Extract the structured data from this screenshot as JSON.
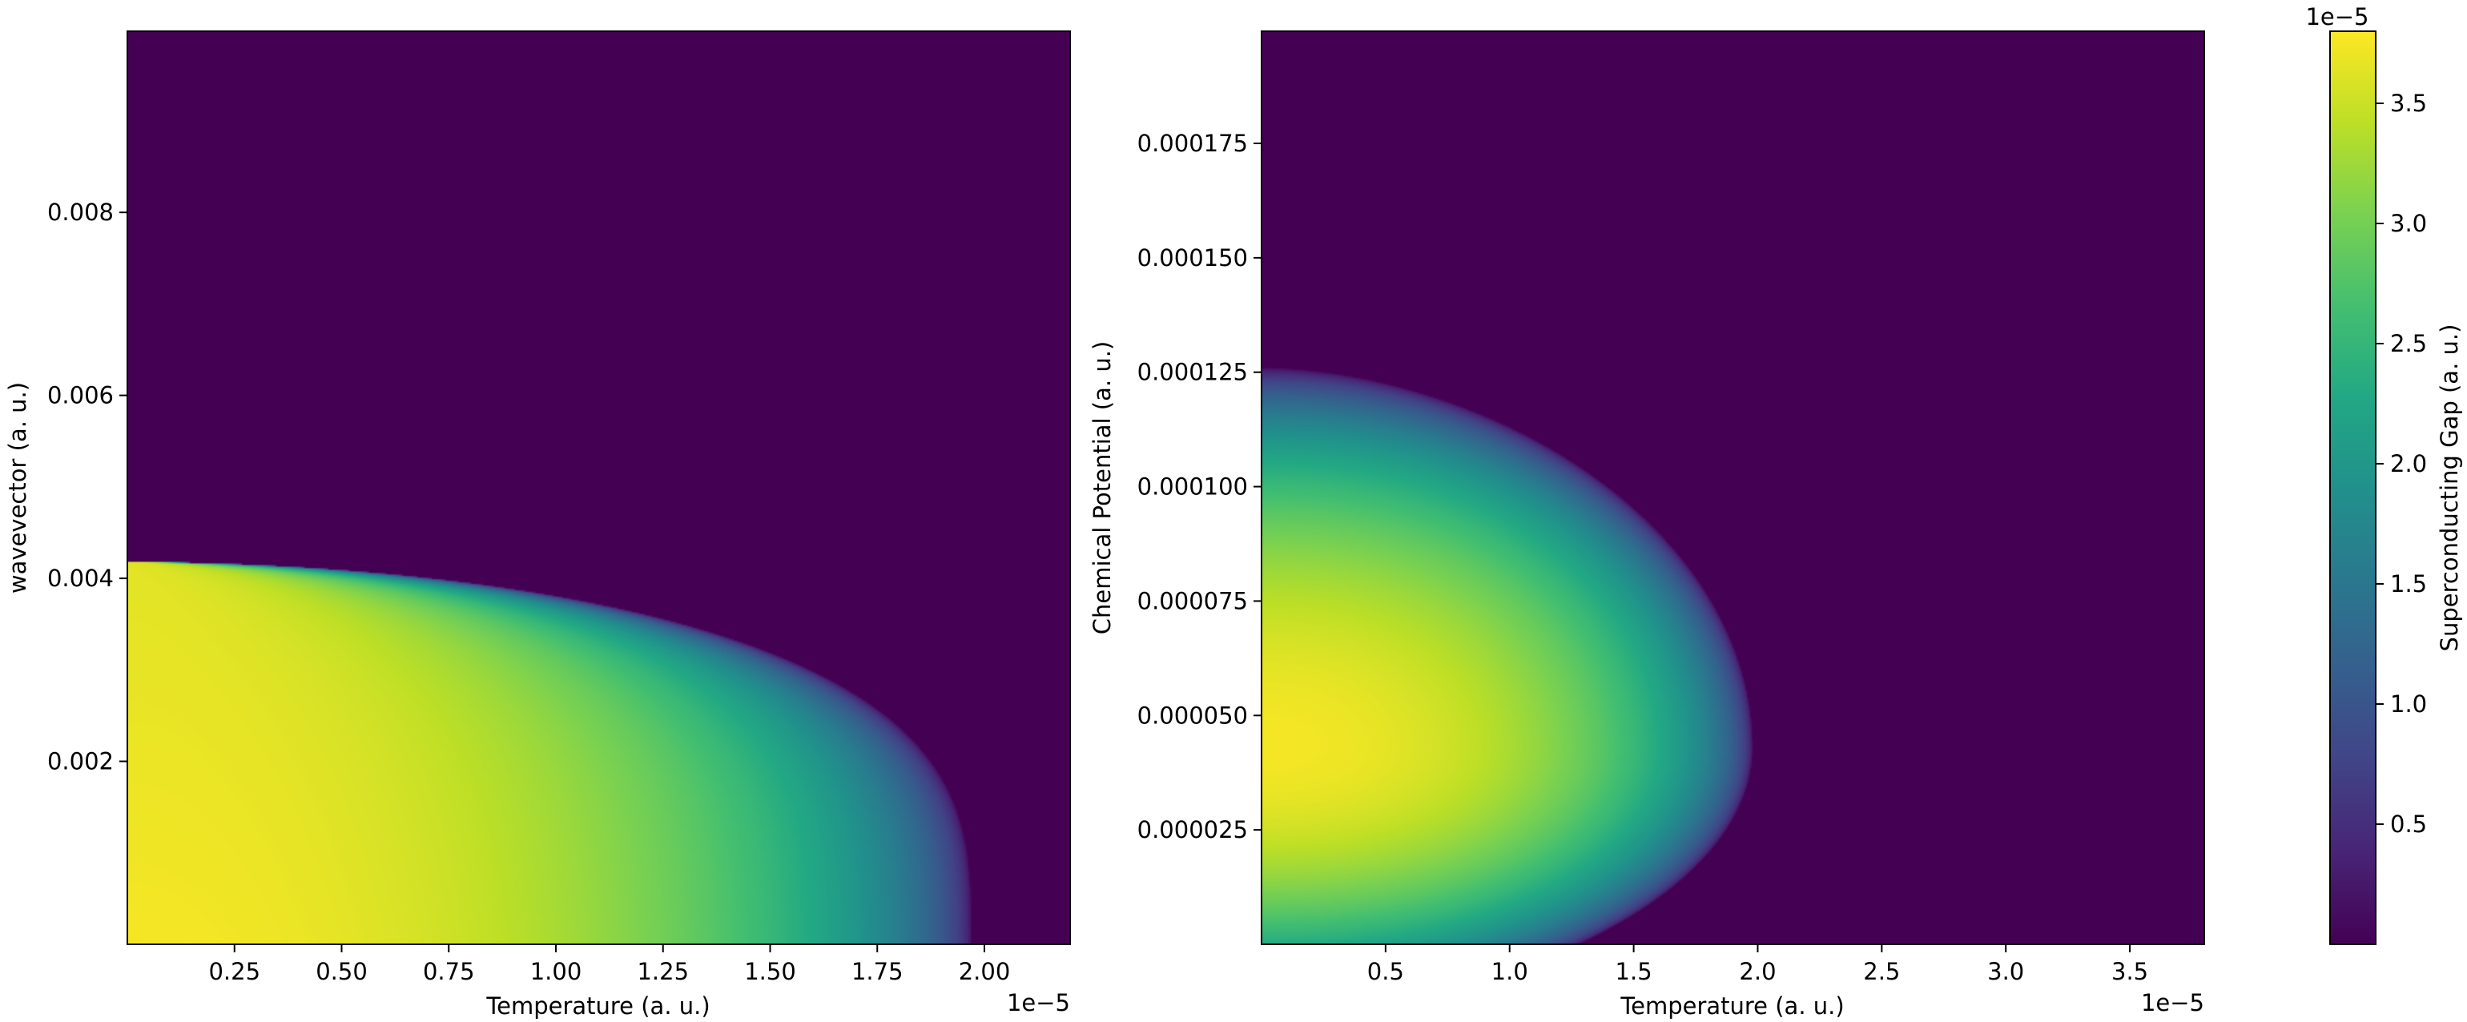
{
  "chart_data": [
    {
      "type": "heatmap",
      "xlabel": "Temperature (a. u.)",
      "ylabel": "wavevector (a. u.)",
      "x_offset_label": "1e−5",
      "xlim": [
        0.0,
        2.2e-05
      ],
      "ylim": [
        0.0,
        0.00998
      ],
      "xticks": [
        2.5e-06,
        5e-06,
        7.5e-06,
        1e-05,
        1.25e-05,
        1.5e-05,
        1.75e-05,
        2e-05
      ],
      "xtick_labels": [
        "0.25",
        "0.50",
        "0.75",
        "1.00",
        "1.25",
        "1.50",
        "1.75",
        "2.00"
      ],
      "yticks": [
        0.002,
        0.004,
        0.006,
        0.008
      ],
      "ytick_labels": [
        "0.002",
        "0.004",
        "0.006",
        "0.008"
      ],
      "colormap": "viridis",
      "color_scale": [
        0.0,
        3.8e-05
      ],
      "phase_boundary": {
        "description": "gap vanishes at critical temperature Tc(k)",
        "tc_at_zero_k": 1.97e-05,
        "k_critical": 0.00418,
        "gap_max": 3.75e-05
      }
    },
    {
      "type": "heatmap",
      "xlabel": "Temperature (a. u.)",
      "ylabel": "Chemical Potential (a. u.)",
      "x_offset_label": "1e−5",
      "xlim": [
        0.0,
        3.8e-05
      ],
      "ylim": [
        0.0,
        0.0001995
      ],
      "xticks": [
        5e-06,
        1e-05,
        1.5e-05,
        2e-05,
        2.5e-05,
        3e-05,
        3.5e-05
      ],
      "xtick_labels": [
        "0.5",
        "1.0",
        "1.5",
        "2.0",
        "2.5",
        "3.0",
        "3.5"
      ],
      "yticks": [
        2.5e-05,
        5e-05,
        7.5e-05,
        0.0001,
        0.000125,
        0.00015,
        0.000175
      ],
      "ytick_labels": [
        "0.000025",
        "0.000050",
        "0.000075",
        "0.000100",
        "0.000125",
        "0.000150",
        "0.000175"
      ],
      "colormap": "viridis",
      "color_scale": [
        0.0,
        3.8e-05
      ],
      "phase_boundary": {
        "description": "gap dome centered near mu = 0.000043, Tc max about 2.0e-5",
        "mu_center": 4.3e-05,
        "tc_max": 1.98e-05,
        "mu_upper_at_zero_t": 0.000126,
        "gap_max": 3.75e-05
      }
    }
  ],
  "colorbar": {
    "label": "Superconducting Gap (a. u.)",
    "offset_label": "1e−5",
    "range": [
      0.0,
      3.8e-05
    ],
    "ticks": [
      5e-06,
      1e-05,
      1.5e-05,
      2e-05,
      2.5e-05,
      3e-05,
      3.5e-05
    ],
    "tick_labels": [
      "0.5",
      "1.0",
      "1.5",
      "2.0",
      "2.5",
      "3.0",
      "3.5"
    ],
    "colormap": "viridis"
  },
  "colors": {
    "viridis_low": "#440154",
    "viridis_high": "#fde725"
  }
}
